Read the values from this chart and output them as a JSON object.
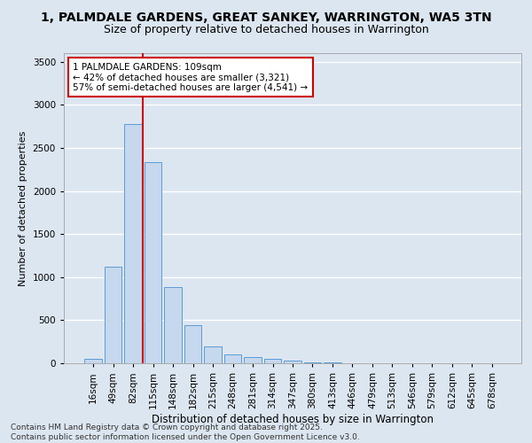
{
  "title": "1, PALMDALE GARDENS, GREAT SANKEY, WARRINGTON, WA5 3TN",
  "subtitle": "Size of property relative to detached houses in Warrington",
  "xlabel": "Distribution of detached houses by size in Warrington",
  "ylabel": "Number of detached properties",
  "bar_color": "#c5d8ed",
  "bar_edge_color": "#5b9bd5",
  "background_color": "#dce6f1",
  "grid_color": "#ffffff",
  "categories": [
    "16sqm",
    "49sqm",
    "82sqm",
    "115sqm",
    "148sqm",
    "182sqm",
    "215sqm",
    "248sqm",
    "281sqm",
    "314sqm",
    "347sqm",
    "380sqm",
    "413sqm",
    "446sqm",
    "479sqm",
    "513sqm",
    "546sqm",
    "579sqm",
    "612sqm",
    "645sqm",
    "678sqm"
  ],
  "values": [
    50,
    1120,
    2780,
    2340,
    880,
    440,
    200,
    105,
    70,
    50,
    30,
    15,
    8,
    3,
    2,
    1,
    0,
    0,
    0,
    0,
    0
  ],
  "vline_color": "#cc0000",
  "vline_x_index": 2.5,
  "annotation_text": "1 PALMDALE GARDENS: 109sqm\n← 42% of detached houses are smaller (3,321)\n57% of semi-detached houses are larger (4,541) →",
  "annotation_box_color": "#ffffff",
  "annotation_box_edge": "#cc0000",
  "ylim": [
    0,
    3600
  ],
  "yticks": [
    0,
    500,
    1000,
    1500,
    2000,
    2500,
    3000,
    3500
  ],
  "footnote": "Contains HM Land Registry data © Crown copyright and database right 2025.\nContains public sector information licensed under the Open Government Licence v3.0.",
  "title_fontsize": 10,
  "subtitle_fontsize": 9,
  "xlabel_fontsize": 8.5,
  "ylabel_fontsize": 8,
  "tick_fontsize": 7.5,
  "annotation_fontsize": 7.5,
  "footnote_fontsize": 6.5
}
